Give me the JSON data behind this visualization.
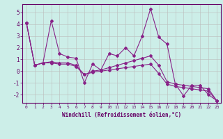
{
  "title": "",
  "xlabel": "Windchill (Refroidissement éolien,°C)",
  "ylabel": "",
  "background_color": "#cceee8",
  "grid_color": "#bbbbbb",
  "line_color": "#882288",
  "x": [
    0,
    1,
    2,
    3,
    4,
    5,
    6,
    7,
    8,
    9,
    10,
    11,
    12,
    13,
    14,
    15,
    16,
    17,
    18,
    19,
    20,
    21,
    22,
    23
  ],
  "series1": [
    4.1,
    0.5,
    0.7,
    4.3,
    1.5,
    1.2,
    1.1,
    -1.0,
    0.6,
    0.1,
    1.5,
    1.3,
    2.0,
    1.3,
    3.0,
    5.3,
    2.9,
    2.3,
    -1.1,
    -2.1,
    -1.2,
    -1.2,
    -2.0,
    -2.5
  ],
  "series2": [
    4.1,
    0.5,
    0.7,
    0.8,
    0.7,
    0.7,
    0.5,
    -0.3,
    0.0,
    0.1,
    0.3,
    0.5,
    0.7,
    0.9,
    1.1,
    1.3,
    0.5,
    -0.9,
    -1.1,
    -1.2,
    -1.3,
    -1.4,
    -1.5,
    -2.5
  ],
  "series3": [
    4.1,
    0.5,
    0.7,
    0.7,
    0.6,
    0.6,
    0.4,
    -0.3,
    -0.1,
    0.0,
    0.1,
    0.2,
    0.3,
    0.4,
    0.5,
    0.6,
    -0.2,
    -1.1,
    -1.3,
    -1.4,
    -1.5,
    -1.6,
    -1.7,
    -2.5
  ],
  "ylim": [
    -2.7,
    5.7
  ],
  "xlim": [
    -0.5,
    23.5
  ],
  "yticks": [
    -2,
    -1,
    0,
    1,
    2,
    3,
    4,
    5
  ],
  "xticks": [
    0,
    1,
    2,
    3,
    4,
    5,
    6,
    7,
    8,
    9,
    10,
    11,
    12,
    13,
    14,
    15,
    16,
    17,
    18,
    19,
    20,
    21,
    22,
    23
  ],
  "tick_color": "#660066",
  "spine_color": "#660066"
}
